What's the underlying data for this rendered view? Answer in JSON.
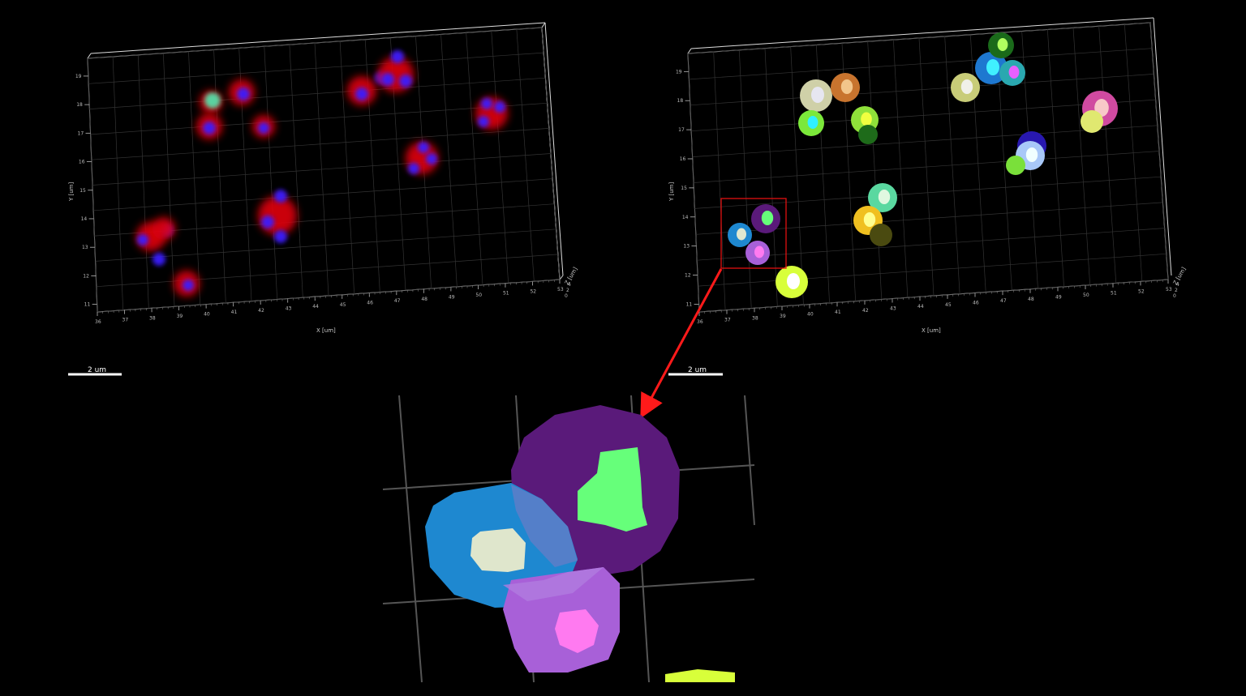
{
  "left_panel": {
    "x_axis_label": "X [um]",
    "y_axis_label": "Y [um]",
    "z_axis_label": "Z [um]",
    "x_ticks": [
      "36",
      "37",
      "38",
      "39",
      "40",
      "41",
      "42",
      "43",
      "44",
      "45",
      "46",
      "47",
      "48",
      "49",
      "50",
      "51",
      "52",
      "53"
    ],
    "y_ticks": [
      "11",
      "12",
      "13",
      "14",
      "15",
      "16",
      "17",
      "18",
      "19"
    ],
    "z_ticks": [
      "0",
      "2",
      "4"
    ]
  },
  "right_panel": {
    "x_axis_label": "X [um]",
    "y_axis_label": "Y [um]",
    "z_axis_label": "Z [um]",
    "x_ticks": [
      "36",
      "37",
      "38",
      "39",
      "40",
      "41",
      "42",
      "43",
      "44",
      "45",
      "46",
      "47",
      "48",
      "49",
      "50",
      "51",
      "52",
      "53"
    ],
    "y_ticks": [
      "11",
      "12",
      "13",
      "14",
      "15",
      "16",
      "17",
      "18",
      "19"
    ],
    "z_ticks": [
      "0",
      "2",
      "4"
    ]
  },
  "scale_bars": {
    "left_label": "2 um",
    "right_label": "2 um"
  },
  "colors": {
    "membrane_stain": "#e00010",
    "nucleus_stain": "#3a1cff",
    "annotation_box": "#e01010",
    "annotation_arrow": "#ff1a1a"
  }
}
